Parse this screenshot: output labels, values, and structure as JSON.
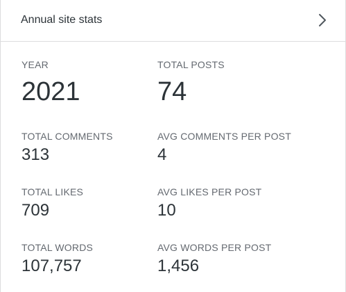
{
  "header": {
    "title": "Annual site stats",
    "chevron_icon": "chevron-right-icon"
  },
  "stats": {
    "year": {
      "label": "YEAR",
      "value": "2021"
    },
    "total_posts": {
      "label": "TOTAL POSTS",
      "value": "74"
    },
    "total_comments": {
      "label": "TOTAL COMMENTS",
      "value": "313"
    },
    "avg_comments_per_post": {
      "label": "AVG COMMENTS PER POST",
      "value": "4"
    },
    "total_likes": {
      "label": "TOTAL LIKES",
      "value": "709"
    },
    "avg_likes_per_post": {
      "label": "AVG LIKES PER POST",
      "value": "10"
    },
    "total_words": {
      "label": "TOTAL WORDS",
      "value": "107,757"
    },
    "avg_words_per_post": {
      "label": "AVG WORDS PER POST",
      "value": "1,456"
    }
  },
  "colors": {
    "text": "#2c3338",
    "label": "#646970",
    "border": "#dcdcde"
  }
}
